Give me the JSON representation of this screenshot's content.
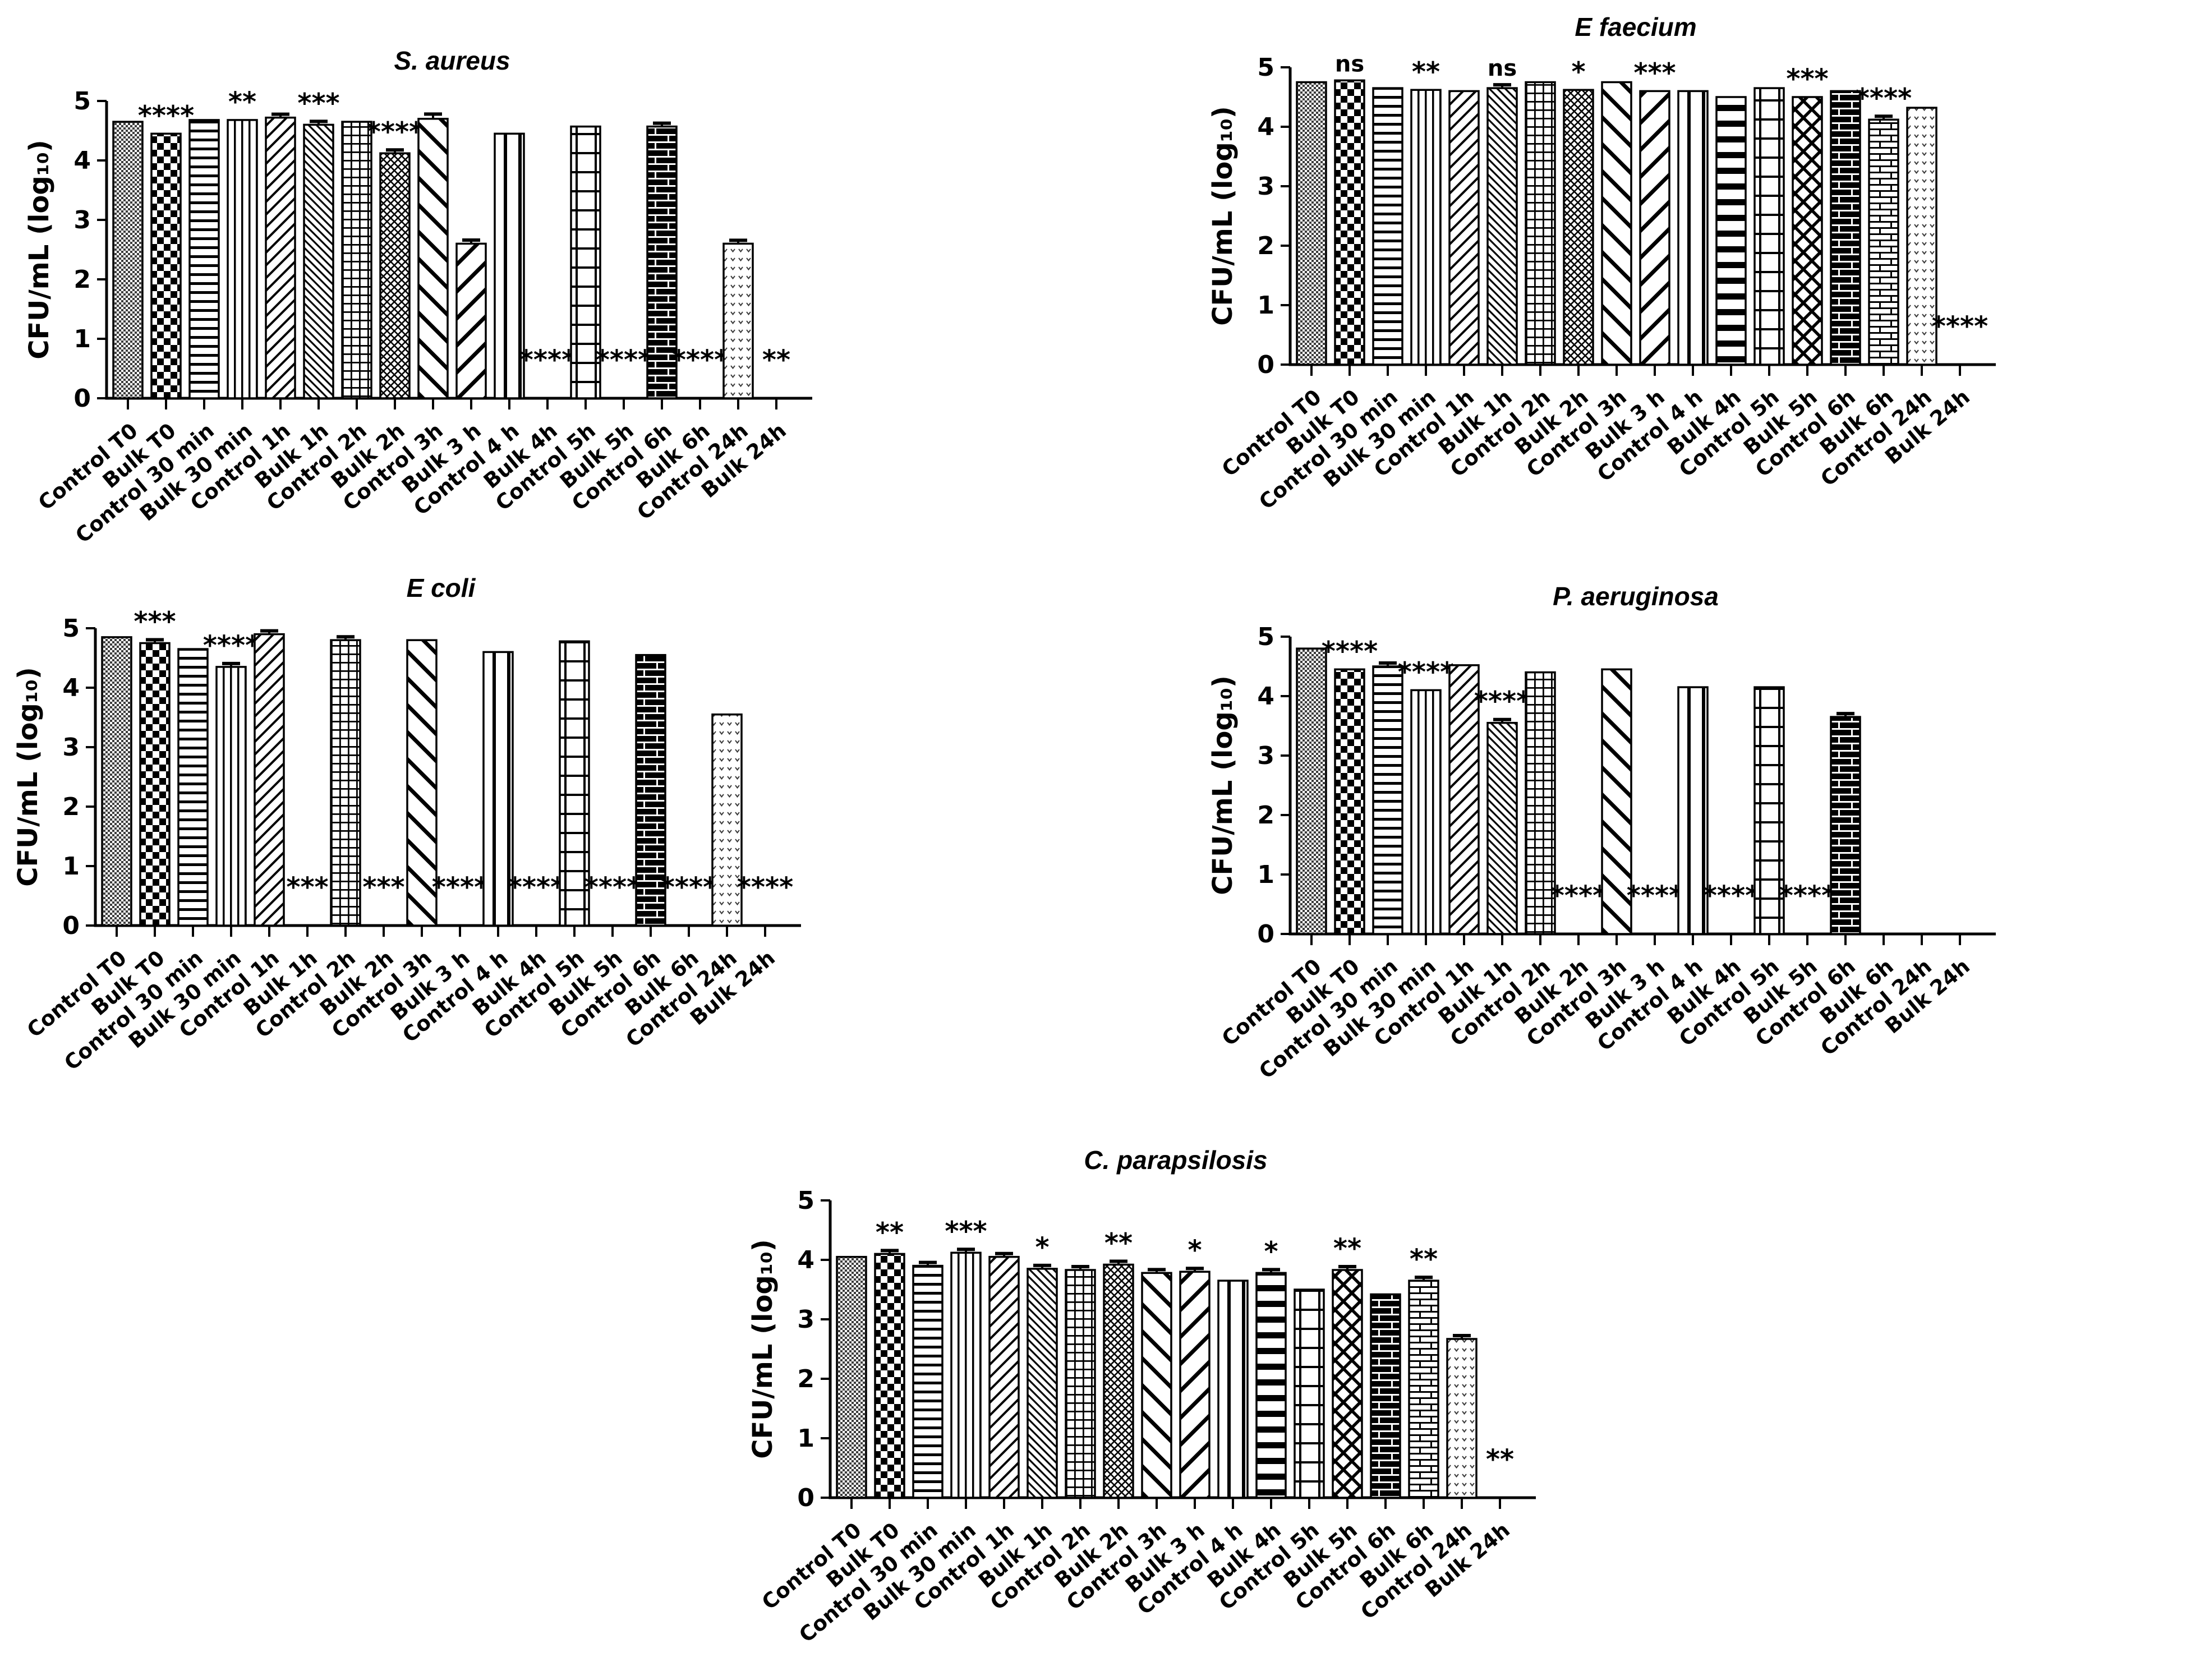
{
  "colors": {
    "ink": "#000000",
    "background": "#ffffff"
  },
  "axis": {
    "y_label": "CFU/mL (log₁₀)",
    "y_ticks": [
      0,
      1,
      2,
      3,
      4,
      5
    ]
  },
  "categories": [
    "Control T0",
    "Bulk T0",
    "Control 30 min",
    "Bulk 30 min",
    "Control 1h",
    "Bulk 1h",
    "Control 2h",
    "Bulk 2h",
    "Control 3h",
    "Bulk 3 h",
    "Control 4 h",
    "Bulk 4h",
    "Control 5h",
    "Bulk 5h",
    "Control 6h",
    "Bulk 6h",
    "Control 24h",
    "Bulk 24h"
  ],
  "bar_patterns": [
    "fine-checkerboard",
    "checkerboard",
    "horizontal-lines",
    "vertical-lines-thin",
    "diagonal-up-lines",
    "diagonal-down-lines-fine",
    "grid-fine",
    "crosshatch-fine",
    "diagonal-down-lines-wide",
    "diagonal-up-lines-wide",
    "vertical-lines-wide",
    "horizontal-lines-thick",
    "grid-large",
    "crosshatch-wide",
    "brick-dark",
    "brick-light",
    "v-dots",
    "diagonal-up-lines-fine"
  ],
  "chart_data": [
    {
      "type": "bar",
      "title": "S. aureus",
      "ylabel": "CFU/mL (log₁₀)",
      "ylim": [
        0,
        5
      ],
      "grid": false,
      "legend": "none",
      "categories": [
        "Control T0",
        "Bulk T0",
        "Control 30 min",
        "Bulk 30 min",
        "Control 1h",
        "Bulk 1h",
        "Control 2h",
        "Bulk 2h",
        "Control 3h",
        "Bulk 3 h",
        "Control 4 h",
        "Bulk 4h",
        "Control 5h",
        "Bulk 5h",
        "Control 6h",
        "Bulk 6h",
        "Control 24h",
        "Bulk 24h"
      ],
      "values": [
        4.65,
        4.45,
        4.68,
        4.68,
        4.72,
        4.6,
        4.65,
        4.12,
        4.7,
        2.6,
        4.45,
        0,
        4.57,
        0,
        4.57,
        0,
        2.6,
        0
      ],
      "errors": [
        0,
        0,
        0,
        0,
        0.02,
        0.02,
        0,
        0.03,
        0.08,
        0.06,
        0,
        0,
        0,
        0,
        0.03,
        0,
        0.04,
        0
      ],
      "significance": [
        "",
        "****",
        "",
        "**",
        "",
        "***",
        "",
        "****",
        "",
        "",
        "",
        "****",
        "",
        "****",
        "",
        "****",
        "",
        "**"
      ]
    },
    {
      "type": "bar",
      "title": "E faecium",
      "ylabel": "CFU/mL (log₁₀)",
      "ylim": [
        0,
        5
      ],
      "grid": false,
      "legend": "none",
      "categories": [
        "Control T0",
        "Bulk T0",
        "Control 30 min",
        "Bulk 30 min",
        "Control 1h",
        "Bulk 1h",
        "Control 2h",
        "Bulk 2h",
        "Control 3h",
        "Bulk 3 h",
        "Control 4 h",
        "Bulk 4h",
        "Control 5h",
        "Bulk 5h",
        "Control 6h",
        "Bulk 6h",
        "Control 24h",
        "Bulk 24h"
      ],
      "values": [
        4.75,
        4.78,
        4.65,
        4.62,
        4.6,
        4.65,
        4.75,
        4.62,
        4.75,
        4.6,
        4.6,
        4.5,
        4.65,
        4.5,
        4.6,
        4.12,
        4.32,
        0
      ],
      "errors": [
        0,
        0,
        0,
        0,
        0,
        0.03,
        0,
        0,
        0,
        0,
        0,
        0,
        0,
        0,
        0,
        0.04,
        0,
        0
      ],
      "significance": [
        "",
        "ns",
        "",
        "**",
        "",
        "ns",
        "",
        "*",
        "",
        "***",
        "",
        "",
        "",
        "***",
        "",
        "****",
        "",
        "****"
      ]
    },
    {
      "type": "bar",
      "title": "E coli",
      "ylabel": "CFU/mL (log₁₀)",
      "ylim": [
        0,
        5
      ],
      "grid": false,
      "legend": "none",
      "categories": [
        "Control T0",
        "Bulk T0",
        "Control 30 min",
        "Bulk 30 min",
        "Control 1h",
        "Bulk 1h",
        "Control 2h",
        "Bulk 2h",
        "Control 3h",
        "Bulk 3 h",
        "Control 4 h",
        "Bulk 4h",
        "Control 5h",
        "Bulk 5h",
        "Control 6h",
        "Bulk 6h",
        "Control 24h",
        "Bulk 24h"
      ],
      "values": [
        4.85,
        4.75,
        4.65,
        4.35,
        4.9,
        0,
        4.8,
        0,
        4.8,
        0,
        4.6,
        0,
        4.78,
        0,
        4.55,
        0,
        3.55,
        0
      ],
      "errors": [
        0,
        0.03,
        0,
        0.04,
        0.02,
        0,
        0.02,
        0,
        0,
        0,
        0,
        0,
        0,
        0,
        0,
        0,
        0,
        0
      ],
      "significance": [
        "",
        "***",
        "",
        "****",
        "",
        "***",
        "",
        "***",
        "",
        "****",
        "",
        "****",
        "",
        "****",
        "",
        "****",
        "",
        "****"
      ]
    },
    {
      "type": "bar",
      "title": "P. aeruginosa",
      "ylabel": "CFU/mL (log₁₀)",
      "ylim": [
        0,
        5
      ],
      "grid": false,
      "legend": "none",
      "categories": [
        "Control T0",
        "Bulk T0",
        "Control 30 min",
        "Bulk 30 min",
        "Control 1h",
        "Bulk 1h",
        "Control 2h",
        "Bulk 2h",
        "Control 3h",
        "Bulk 3 h",
        "Control 4 h",
        "Bulk 4h",
        "Control 5h",
        "Bulk 5h",
        "Control 6h",
        "Bulk 6h",
        "Control 24h",
        "Bulk 24h"
      ],
      "values": [
        4.8,
        4.45,
        4.5,
        4.1,
        4.52,
        3.55,
        4.4,
        0,
        4.45,
        0,
        4.15,
        0,
        4.15,
        0,
        3.65,
        0,
        0,
        0
      ],
      "errors": [
        0,
        0,
        0.02,
        0,
        0,
        0.04,
        0,
        0,
        0,
        0,
        0,
        0,
        0,
        0,
        0.02,
        0,
        0,
        0
      ],
      "significance": [
        "",
        "****",
        "",
        "****",
        "",
        "****",
        "",
        "****",
        "",
        "****",
        "",
        "****",
        "",
        "****",
        "",
        "",
        "",
        ""
      ]
    },
    {
      "type": "bar",
      "title": "C. parapsilosis",
      "ylabel": "CFU/mL (log₁₀)",
      "ylim": [
        0,
        5
      ],
      "grid": false,
      "legend": "none",
      "categories": [
        "Control T0",
        "Bulk T0",
        "Control 30 min",
        "Bulk 30 min",
        "Control 1h",
        "Bulk 1h",
        "Control 2h",
        "Bulk 2h",
        "Control 3h",
        "Bulk 3 h",
        "Control 4 h",
        "Bulk 4h",
        "Control 5h",
        "Bulk 5h",
        "Control 6h",
        "Bulk 6h",
        "Control 24h",
        "Bulk 24h"
      ],
      "values": [
        4.05,
        4.1,
        3.9,
        4.12,
        4.05,
        3.85,
        3.83,
        3.92,
        3.78,
        3.8,
        3.65,
        3.78,
        3.5,
        3.83,
        3.42,
        3.65,
        2.67,
        0
      ],
      "errors": [
        0,
        0.02,
        0.04,
        0.03,
        0.02,
        0.03,
        0.03,
        0.03,
        0.02,
        0.03,
        0,
        0.02,
        0,
        0.03,
        0,
        0.02,
        0.03,
        0
      ],
      "significance": [
        "",
        "**",
        "",
        "***",
        "",
        "*",
        "",
        "**",
        "",
        "*",
        "",
        "*",
        "",
        "**",
        "",
        "**",
        "",
        "**"
      ]
    }
  ]
}
